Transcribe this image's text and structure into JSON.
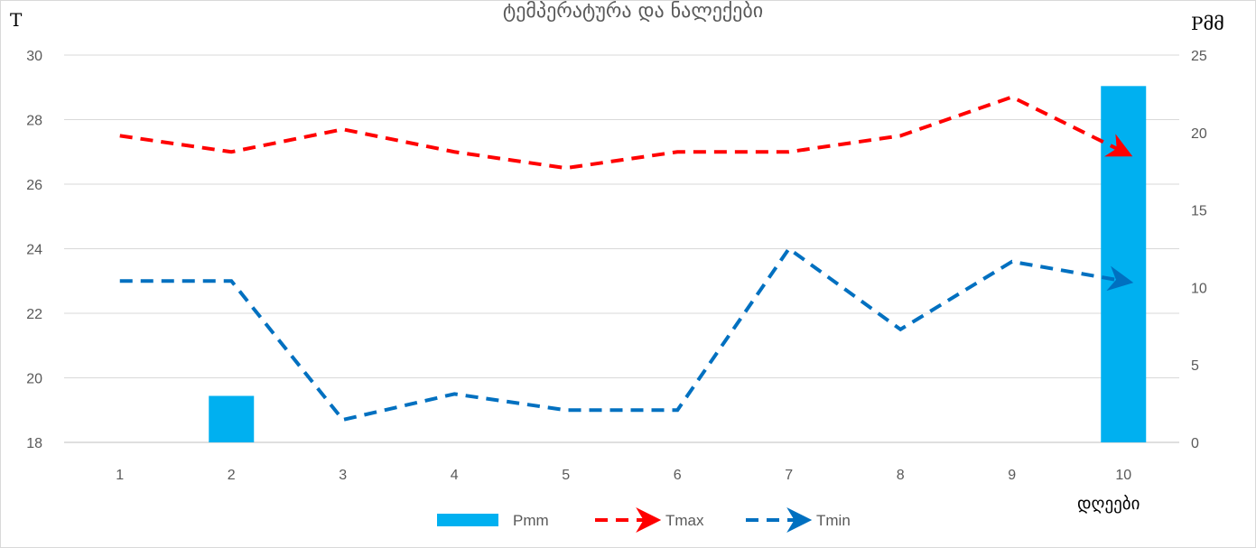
{
  "chart_data": {
    "type": "bar+line",
    "title": "ტემპერატურა და ნალექები",
    "xlabel": "დღეები",
    "ylabel_left": "T",
    "ylabel_right": "Pმმ",
    "categories": [
      "1",
      "2",
      "3",
      "4",
      "5",
      "6",
      "7",
      "8",
      "9",
      "10"
    ],
    "y_left": {
      "min": 18,
      "max": 30,
      "ticks": [
        18,
        20,
        22,
        24,
        26,
        28,
        30
      ]
    },
    "y_right": {
      "min": 0,
      "max": 25,
      "ticks": [
        0,
        5,
        10,
        15,
        20,
        25
      ]
    },
    "grid": true,
    "legend_position": "bottom",
    "series": [
      {
        "name": "Pmm",
        "type": "bar",
        "axis": "right",
        "color": "#00b0f0",
        "values": [
          0,
          3,
          0,
          0,
          0,
          0,
          0,
          0,
          0,
          23
        ]
      },
      {
        "name": "Tmax",
        "type": "line",
        "axis": "left",
        "color": "#ff0000",
        "dashed": true,
        "values": [
          27.5,
          27.0,
          27.7,
          27.0,
          26.5,
          27.0,
          27.0,
          27.5,
          28.7,
          27.0
        ]
      },
      {
        "name": "Tmin",
        "type": "line",
        "axis": "left",
        "color": "#0070c0",
        "dashed": true,
        "values": [
          23.0,
          23.0,
          18.7,
          19.5,
          19.0,
          19.0,
          24.0,
          21.5,
          23.6,
          23.0
        ]
      }
    ]
  }
}
